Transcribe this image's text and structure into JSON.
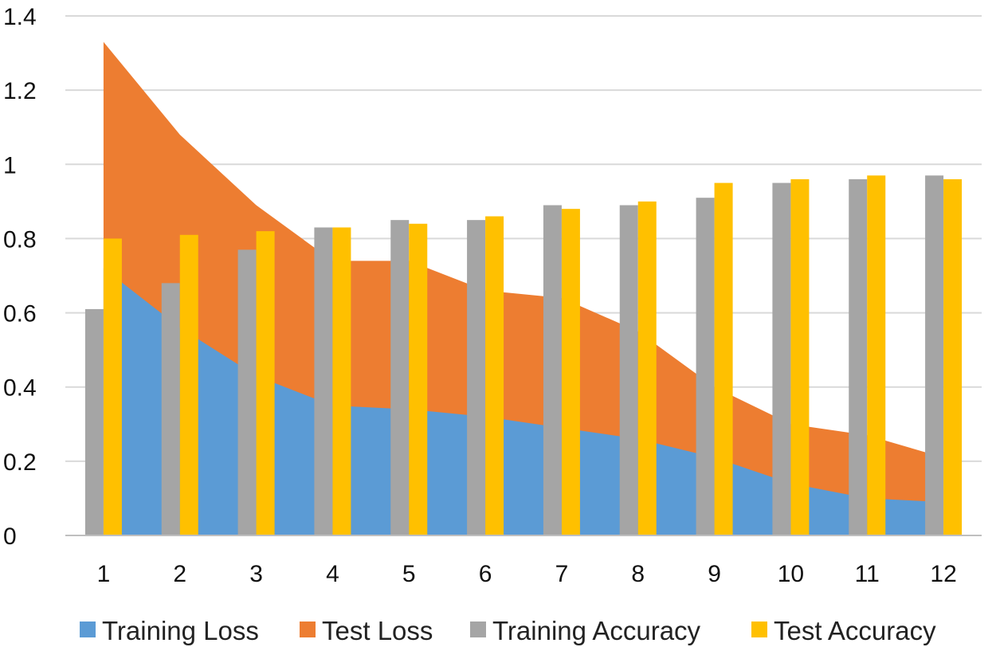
{
  "chart_data": {
    "type": "bar",
    "categories": [
      "1",
      "2",
      "3",
      "4",
      "5",
      "6",
      "7",
      "8",
      "9",
      "10",
      "11",
      "12"
    ],
    "y_ticks": [
      "0",
      "0.2",
      "0.4",
      "0.6",
      "0.8",
      "1",
      "1.2",
      "1.4"
    ],
    "ylim": [
      0,
      1.4
    ],
    "grid": true,
    "legend_position": "bottom",
    "series": [
      {
        "name": "Training Loss",
        "render": "area",
        "color": "#5b9bd5",
        "values": [
          0.72,
          0.56,
          0.43,
          0.35,
          0.34,
          0.32,
          0.29,
          0.26,
          0.21,
          0.14,
          0.1,
          0.09
        ]
      },
      {
        "name": "Test Loss",
        "render": "area",
        "color": "#ed7d31",
        "values": [
          1.33,
          1.08,
          0.89,
          0.74,
          0.74,
          0.66,
          0.64,
          0.55,
          0.4,
          0.3,
          0.27,
          0.21
        ]
      },
      {
        "name": "Training Accuracy",
        "render": "bar",
        "color": "#a5a5a5",
        "values": [
          0.61,
          0.68,
          0.77,
          0.83,
          0.85,
          0.85,
          0.89,
          0.89,
          0.91,
          0.95,
          0.96,
          0.97
        ]
      },
      {
        "name": "Test Accuracy",
        "render": "bar",
        "color": "#ffc000",
        "values": [
          0.8,
          0.81,
          0.82,
          0.83,
          0.84,
          0.86,
          0.88,
          0.9,
          0.95,
          0.96,
          0.97,
          0.96
        ]
      }
    ],
    "title": "",
    "xlabel": "",
    "ylabel": ""
  }
}
